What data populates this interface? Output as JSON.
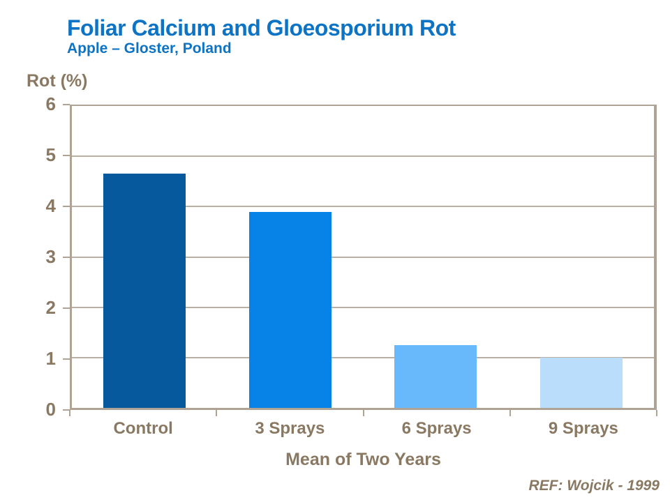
{
  "header": {
    "title": "Foliar Calcium and Gloeosporium Rot",
    "subtitle": "Apple – Gloster, Poland"
  },
  "chart_data": {
    "type": "bar",
    "title": "Foliar Calcium and Gloeosporium Rot",
    "subtitle": "Apple – Gloster, Poland",
    "categories": [
      "Control",
      "3 Sprays",
      "6 Sprays",
      "9 Sprays"
    ],
    "values": [
      4.65,
      3.9,
      1.25,
      1.0
    ],
    "bar_colors": [
      "#07599e",
      "#0783e8",
      "#68b9fb",
      "#b9ddfb"
    ],
    "ylabel": "Rot (%)",
    "xlabel": "Mean of Two Years",
    "ylim": [
      0,
      6
    ],
    "yticks": [
      0,
      1,
      2,
      3,
      4,
      5,
      6
    ],
    "grid": true,
    "legend": false
  },
  "footer": {
    "reference": "REF: Wojcik - 1999"
  },
  "colors": {
    "title_blue": "#0d73c4",
    "text_brown": "#8a7962",
    "axis_line": "#aea395",
    "grid_line": "#b9b0a3",
    "background": "#ffffff"
  }
}
